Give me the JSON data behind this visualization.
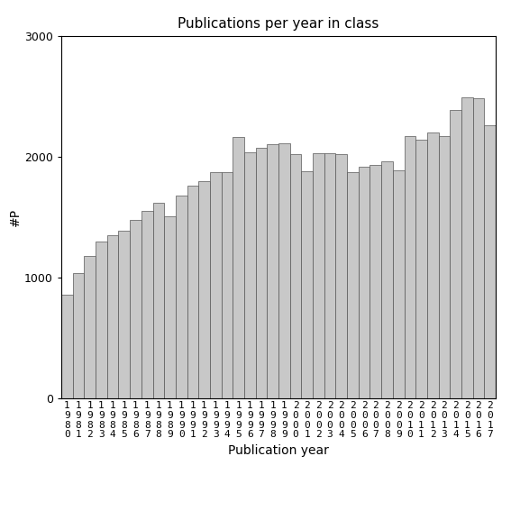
{
  "title": "Publications per year in class",
  "xlabel": "Publication year",
  "ylabel": "#P",
  "ylim": [
    0,
    3000
  ],
  "yticks": [
    0,
    1000,
    2000,
    3000
  ],
  "bar_color": "#c8c8c8",
  "bar_edgecolor": "#555555",
  "bar_linewidth": 0.5,
  "years": [
    "1980",
    "1981",
    "1982",
    "1983",
    "1984",
    "1985",
    "1986",
    "1987",
    "1988",
    "1989",
    "1990",
    "1991",
    "1992",
    "1993",
    "1994",
    "1995",
    "1996",
    "1997",
    "1998",
    "1999",
    "2000",
    "2001",
    "2002",
    "2003",
    "2004",
    "2005",
    "2006",
    "2007",
    "2008",
    "2009",
    "2010",
    "2011",
    "2012",
    "2013",
    "2014",
    "2015",
    "2016",
    "2017"
  ],
  "values": [
    860,
    1040,
    1180,
    1300,
    1350,
    1390,
    1480,
    1555,
    1620,
    1510,
    1680,
    1760,
    1800,
    1870,
    1870,
    2160,
    2040,
    2070,
    2100,
    2110,
    2020,
    1880,
    2030,
    2030,
    2020,
    1870,
    1920,
    1930,
    1960,
    1890,
    2170,
    2140,
    2200,
    2170,
    2390,
    2490,
    2480,
    2260
  ],
  "figsize": [
    5.67,
    5.67
  ],
  "dpi": 100,
  "title_fontsize": 11,
  "axis_label_fontsize": 10,
  "tick_fontsize": 9,
  "ylabel_x_offset": -0.02
}
